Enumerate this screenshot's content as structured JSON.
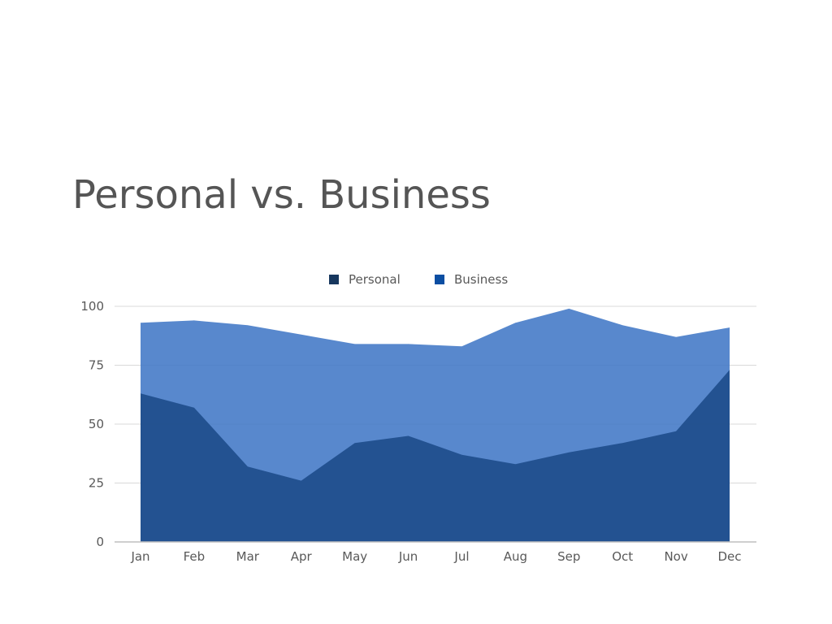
{
  "page": {
    "title": "Personal vs. Business"
  },
  "chart_data": {
    "type": "area",
    "stacked": false,
    "categories": [
      "Jan",
      "Feb",
      "Mar",
      "Apr",
      "May",
      "Jun",
      "Jul",
      "Aug",
      "Sep",
      "Oct",
      "Nov",
      "Dec"
    ],
    "series": [
      {
        "name": "Personal",
        "values": [
          63,
          57,
          32,
          26,
          42,
          45,
          37,
          33,
          38,
          42,
          47,
          73
        ],
        "color": "#1f4e8c"
      },
      {
        "name": "Business",
        "values": [
          93,
          94,
          92,
          88,
          84,
          84,
          83,
          93,
          99,
          92,
          87,
          91
        ],
        "color": "#3b73c4"
      }
    ],
    "legend_swatch_colors": [
      "#17375e",
      "#0b4ea2"
    ],
    "ylim": [
      0,
      100
    ],
    "yticks": [
      0,
      25,
      50,
      75,
      100
    ],
    "grid": true,
    "legend_position": "top-center",
    "title": "",
    "xlabel": "",
    "ylabel": ""
  }
}
